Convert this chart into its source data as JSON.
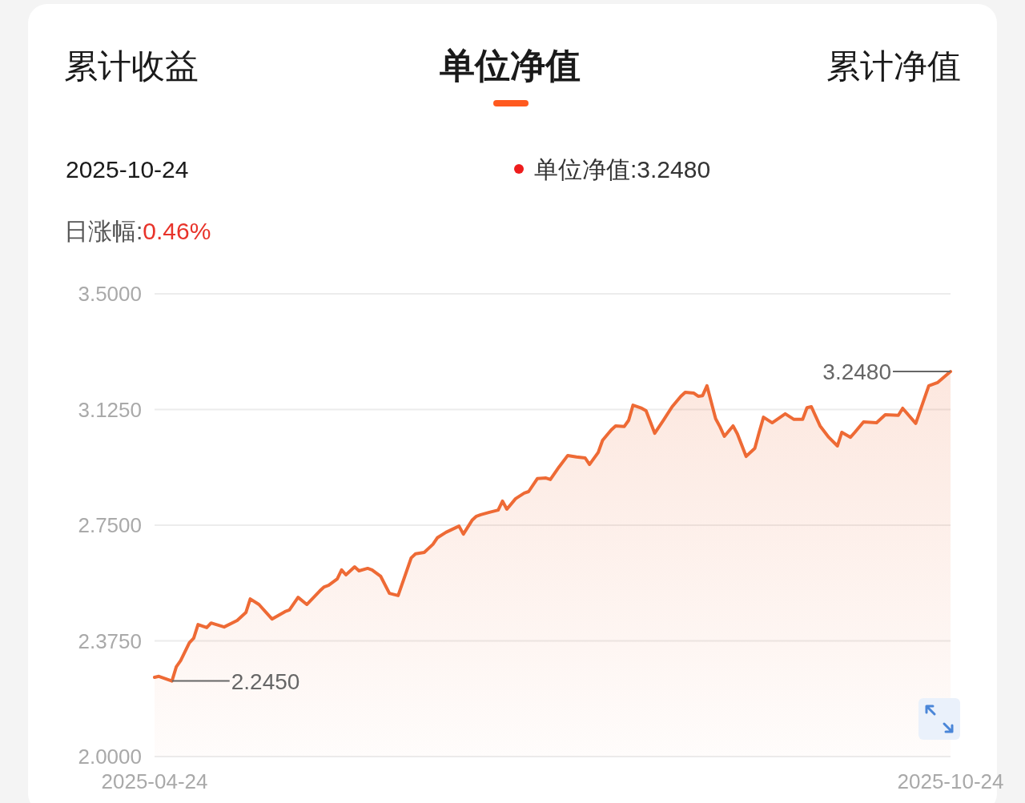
{
  "chart_data": {
    "type": "area",
    "title": "单位净值",
    "annotations": [
      "累计收益",
      "累计净值",
      "2025-10-24",
      "单位净值:3.2480",
      "日涨幅:0.46%",
      {
        "text": "2.2450",
        "x": "2025-04-28",
        "y": 2.245
      },
      {
        "text": "3.2480",
        "x": "2025-10-24",
        "y": 3.248
      }
    ],
    "xlim": [
      "2025-04-24",
      "2025-10-24"
    ],
    "xticks": [
      "2025-04-24",
      "2025-10-24"
    ],
    "ylim": [
      2.0,
      3.5
    ],
    "yticks": [
      {
        "value": 2.0,
        "label": "2.0000"
      },
      {
        "value": 2.375,
        "label": "2.3750"
      },
      {
        "value": 2.75,
        "label": "2.7500"
      },
      {
        "value": 3.125,
        "label": "3.1250"
      },
      {
        "value": 3.5,
        "label": "3.5000"
      }
    ],
    "grid": "y",
    "line_style": "solid",
    "marker": "none",
    "series": [
      {
        "color": "#ee6a35",
        "x": [
          "2025-04-24",
          "2025-04-25",
          "2025-04-28",
          "2025-04-29",
          "2025-04-30",
          "2025-05-02",
          "2025-05-03",
          "2025-05-04",
          "2025-05-06",
          "2025-05-07",
          "2025-05-10",
          "2025-05-13",
          "2025-05-15",
          "2025-05-16",
          "2025-05-18",
          "2025-05-21",
          "2025-05-24",
          "2025-05-25",
          "2025-05-27",
          "2025-05-29",
          "2025-06-01",
          "2025-06-02",
          "2025-06-03",
          "2025-06-05",
          "2025-06-06",
          "2025-06-07",
          "2025-06-09",
          "2025-06-10",
          "2025-06-12",
          "2025-06-13",
          "2025-06-15",
          "2025-06-17",
          "2025-06-19",
          "2025-06-22",
          "2025-06-23",
          "2025-06-25",
          "2025-06-27",
          "2025-06-28",
          "2025-06-30",
          "2025-07-03",
          "2025-07-04",
          "2025-07-06",
          "2025-07-07",
          "2025-07-08",
          "2025-07-10",
          "2025-07-12",
          "2025-07-13",
          "2025-07-14",
          "2025-07-16",
          "2025-07-18",
          "2025-07-19",
          "2025-07-21",
          "2025-07-23",
          "2025-07-24",
          "2025-07-26",
          "2025-07-28",
          "2025-07-30",
          "2025-08-01",
          "2025-08-02",
          "2025-08-04",
          "2025-08-05",
          "2025-08-07",
          "2025-08-08",
          "2025-08-10",
          "2025-08-11",
          "2025-08-12",
          "2025-08-14",
          "2025-08-15",
          "2025-08-17",
          "2025-08-19",
          "2025-08-21",
          "2025-08-23",
          "2025-08-24",
          "2025-08-26",
          "2025-08-27",
          "2025-08-28",
          "2025-08-29",
          "2025-08-31",
          "2025-09-01",
          "2025-09-02",
          "2025-09-04",
          "2025-09-05",
          "2025-09-07",
          "2025-09-09",
          "2025-09-10",
          "2025-09-11",
          "2025-09-13",
          "2025-09-16",
          "2025-09-18",
          "2025-09-20",
          "2025-09-21",
          "2025-09-22",
          "2025-09-24",
          "2025-09-26",
          "2025-09-28",
          "2025-09-29",
          "2025-10-01",
          "2025-10-02",
          "2025-10-04",
          "2025-10-07",
          "2025-10-09",
          "2025-10-12",
          "2025-10-13",
          "2025-10-16",
          "2025-10-19",
          "2025-10-21",
          "2025-10-24"
        ],
        "values": [
          2.257,
          2.26,
          2.245,
          2.291,
          2.311,
          2.369,
          2.384,
          2.428,
          2.418,
          2.433,
          2.42,
          2.441,
          2.467,
          2.511,
          2.493,
          2.446,
          2.47,
          2.475,
          2.516,
          2.493,
          2.537,
          2.55,
          2.555,
          2.576,
          2.605,
          2.589,
          2.615,
          2.602,
          2.61,
          2.605,
          2.584,
          2.529,
          2.522,
          2.644,
          2.657,
          2.662,
          2.688,
          2.709,
          2.727,
          2.747,
          2.721,
          2.766,
          2.779,
          2.784,
          2.792,
          2.799,
          2.828,
          2.802,
          2.836,
          2.854,
          2.859,
          2.901,
          2.903,
          2.898,
          2.939,
          2.976,
          2.971,
          2.968,
          2.947,
          2.986,
          3.025,
          3.059,
          3.072,
          3.07,
          3.09,
          3.139,
          3.129,
          3.121,
          3.048,
          3.09,
          3.134,
          3.168,
          3.181,
          3.178,
          3.168,
          3.17,
          3.202,
          3.095,
          3.069,
          3.038,
          3.072,
          3.046,
          2.973,
          2.999,
          3.051,
          3.1,
          3.082,
          3.111,
          3.093,
          3.093,
          3.131,
          3.134,
          3.072,
          3.035,
          3.007,
          3.051,
          3.035,
          3.051,
          3.085,
          3.082,
          3.108,
          3.106,
          3.129,
          3.08,
          3.202,
          3.212,
          3.248
        ]
      }
    ]
  }
}
